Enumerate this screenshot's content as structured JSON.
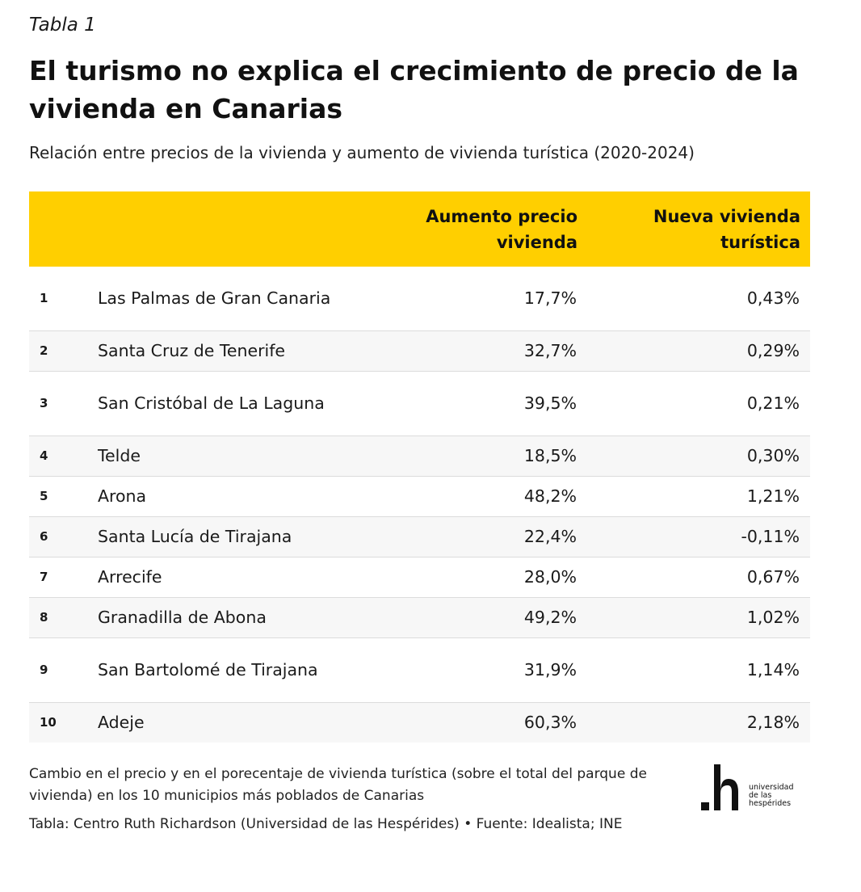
{
  "overline": "Tabla 1",
  "title": "El turismo no explica el crecimiento de precio de la vivienda en Canarias",
  "subtitle": "Relación entre precios de la vivienda y aumento de vivienda turística (2020-2024)",
  "colors": {
    "header_bg": "#ffcf00",
    "zebra_bg": "#f7f7f7",
    "text": "#1a1a1a"
  },
  "chart_data": {
    "type": "table",
    "columns": [
      "",
      "",
      "Aumento precio vivienda",
      "Nueva vivienda turística"
    ],
    "rows": [
      {
        "rank": "1",
        "municipio": "Las Palmas de Gran Canaria",
        "precio": "17,7%",
        "turistica": "0,43%"
      },
      {
        "rank": "2",
        "municipio": "Santa Cruz de Tenerife",
        "precio": "32,7%",
        "turistica": "0,29%"
      },
      {
        "rank": "3",
        "municipio": "San Cristóbal de La Laguna",
        "precio": "39,5%",
        "turistica": "0,21%"
      },
      {
        "rank": "4",
        "municipio": "Telde",
        "precio": "18,5%",
        "turistica": "0,30%"
      },
      {
        "rank": "5",
        "municipio": "Arona",
        "precio": "48,2%",
        "turistica": "1,21%"
      },
      {
        "rank": "6",
        "municipio": "Santa Lucía de Tirajana",
        "precio": "22,4%",
        "turistica": "-0,11%"
      },
      {
        "rank": "7",
        "municipio": "Arrecife",
        "precio": "28,0%",
        "turistica": "0,67%"
      },
      {
        "rank": "8",
        "municipio": "Granadilla de Abona",
        "precio": "49,2%",
        "turistica": "1,02%"
      },
      {
        "rank": "9",
        "municipio": "San Bartolomé de Tirajana",
        "precio": "31,9%",
        "turistica": "1,14%"
      },
      {
        "rank": "10",
        "municipio": "Adeje",
        "precio": "60,3%",
        "turistica": "2,18%"
      }
    ]
  },
  "notes": "Cambio en el precio y en el porecentaje de vivienda turística (sobre el total del parque de vivienda) en los 10 municipios más poblados de Canarias",
  "source": "Tabla: Centro Ruth Richardson (Universidad de las Hespérides) • Fuente: Idealista; INE",
  "logo": {
    "icon": "h-logo-icon",
    "lines": [
      "universidad",
      "de las",
      "hespérides"
    ]
  }
}
